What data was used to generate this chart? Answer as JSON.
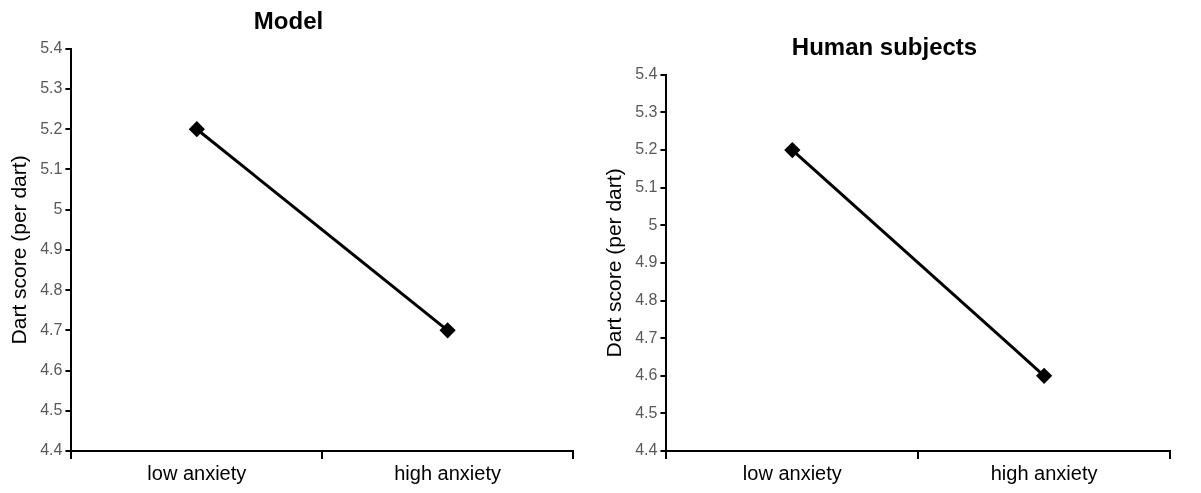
{
  "chart_data": [
    {
      "type": "line",
      "title": "Model",
      "ylabel": "Dart score (per dart)",
      "categories": [
        "low anxiety",
        "high anxiety"
      ],
      "series": [
        {
          "color": "#000000",
          "values": [
            5.2,
            4.7
          ]
        }
      ],
      "ylim": [
        4.4,
        5.4
      ],
      "yticks": [
        4.4,
        4.5,
        4.6,
        4.7,
        4.8,
        4.9,
        5,
        5.1,
        5.2,
        5.3,
        5.4
      ],
      "marker": "diamond",
      "grid": false,
      "legend": false
    },
    {
      "type": "line",
      "title": "Human subjects",
      "ylabel": "Dart score (per dart)",
      "categories": [
        "low anxiety",
        "high anxiety"
      ],
      "series": [
        {
          "color": "#000000",
          "values": [
            5.2,
            4.6
          ]
        }
      ],
      "ylim": [
        4.4,
        5.4
      ],
      "yticks": [
        4.4,
        4.5,
        4.6,
        4.7,
        4.8,
        4.9,
        5,
        5.1,
        5.2,
        5.3,
        5.4
      ],
      "marker": "diamond",
      "grid": false,
      "legend": false
    }
  ]
}
